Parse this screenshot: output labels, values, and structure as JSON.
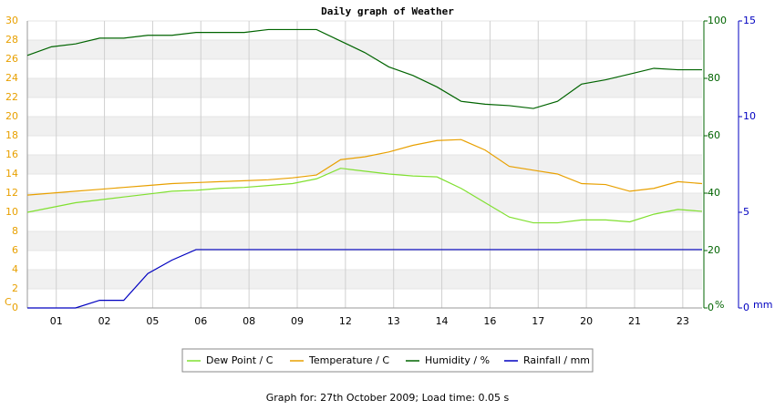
{
  "chart_data": {
    "type": "line",
    "title": "Daily graph of Weather",
    "footer": "Graph for: 27th October 2009; Load time: 0.05 s",
    "y_label": "C",
    "y2_label": "%",
    "y3_label": "mm",
    "xlim": [
      0,
      14
    ],
    "xticks": [
      {
        "value": 0.6,
        "label": "01"
      },
      {
        "value": 1.6,
        "label": "02"
      },
      {
        "value": 2.6,
        "label": "05"
      },
      {
        "value": 3.6,
        "label": "06"
      },
      {
        "value": 4.6,
        "label": "08"
      },
      {
        "value": 5.6,
        "label": "09"
      },
      {
        "value": 6.6,
        "label": "12"
      },
      {
        "value": 7.6,
        "label": "13"
      },
      {
        "value": 8.6,
        "label": "14"
      },
      {
        "value": 9.6,
        "label": "16"
      },
      {
        "value": 10.6,
        "label": "17"
      },
      {
        "value": 11.6,
        "label": "20"
      },
      {
        "value": 12.6,
        "label": "21"
      },
      {
        "value": 13.6,
        "label": "23"
      }
    ],
    "x": [
      0,
      0.5,
      1,
      1.5,
      2,
      2.5,
      3,
      3.5,
      4,
      4.5,
      5,
      5.5,
      6,
      6.5,
      7,
      7.5,
      8,
      8.5,
      9,
      9.5,
      10,
      10.5,
      11,
      11.5,
      12,
      12.5,
      13,
      13.5,
      14
    ],
    "ylim": [
      0,
      30
    ],
    "yticks": [
      0,
      2,
      4,
      6,
      8,
      10,
      12,
      14,
      16,
      18,
      20,
      22,
      24,
      26,
      28,
      30
    ],
    "y2lim": [
      0,
      100
    ],
    "y2ticks": [
      0,
      20,
      40,
      60,
      80,
      100
    ],
    "y3lim": [
      0,
      15
    ],
    "y3ticks": [
      0,
      5,
      10,
      15
    ],
    "series": [
      {
        "name": "Dew Point / C",
        "color": "#80e030",
        "axis": "y",
        "values": [
          10,
          10.5,
          11,
          11.3,
          11.6,
          11.9,
          12.2,
          12.3,
          12.5,
          12.6,
          12.8,
          13.0,
          13.5,
          14.6,
          14.3,
          14.0,
          13.8,
          13.7,
          12.5,
          11.0,
          9.5,
          8.9,
          8.9,
          9.2,
          9.2,
          9.0,
          9.8,
          10.3,
          10.1
        ]
      },
      {
        "name": "Temperature / C",
        "color": "#e8a000",
        "axis": "y",
        "values": [
          11.8,
          12.0,
          12.2,
          12.4,
          12.6,
          12.8,
          13.0,
          13.1,
          13.2,
          13.3,
          13.4,
          13.6,
          13.9,
          15.5,
          15.8,
          16.3,
          17.0,
          17.5,
          17.6,
          16.5,
          14.8,
          14.4,
          14.0,
          13.0,
          12.9,
          12.2,
          12.5,
          13.2,
          13.0
        ]
      },
      {
        "name": "Humidity / %",
        "color": "#006400",
        "axis": "y2",
        "values": [
          88,
          91,
          92,
          94,
          94,
          95,
          95,
          96,
          96,
          96,
          97,
          97,
          97,
          93,
          89,
          84,
          81,
          77,
          72,
          71,
          70.5,
          69.5,
          72,
          78,
          79.5,
          81.5,
          83.5,
          83,
          83
        ]
      },
      {
        "name": "Rainfall / mm",
        "color": "#0000c0",
        "axis": "y3",
        "values": [
          0,
          0,
          0,
          0.4,
          0.4,
          1.8,
          2.5,
          3.05,
          3.05,
          3.05,
          3.05,
          3.05,
          3.05,
          3.05,
          3.05,
          3.05,
          3.05,
          3.05,
          3.05,
          3.05,
          3.05,
          3.05,
          3.05,
          3.05,
          3.05,
          3.05,
          3.05,
          3.05,
          3.05
        ]
      }
    ]
  }
}
